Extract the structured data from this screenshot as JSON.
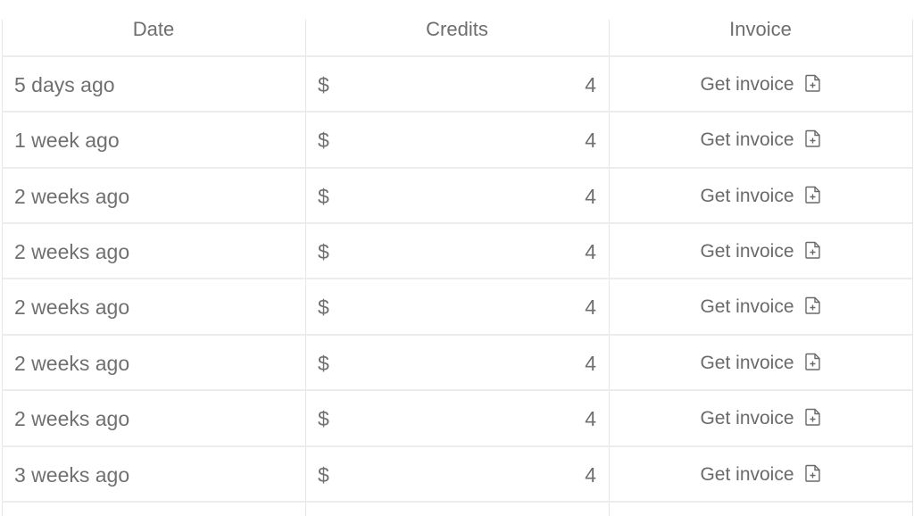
{
  "headers": {
    "date": "Date",
    "credits": "Credits",
    "invoice": "Invoice"
  },
  "rows": [
    {
      "date": "5 days ago",
      "currency": "$",
      "amount": "4",
      "invoice": "Get invoice"
    },
    {
      "date": "1 week ago",
      "currency": "$",
      "amount": "4",
      "invoice": "Get invoice"
    },
    {
      "date": "2 weeks ago",
      "currency": "$",
      "amount": "4",
      "invoice": "Get invoice"
    },
    {
      "date": "2 weeks ago",
      "currency": "$",
      "amount": "4",
      "invoice": "Get invoice"
    },
    {
      "date": "2 weeks ago",
      "currency": "$",
      "amount": "4",
      "invoice": "Get invoice"
    },
    {
      "date": "2 weeks ago",
      "currency": "$",
      "amount": "4",
      "invoice": "Get invoice"
    },
    {
      "date": "2 weeks ago",
      "currency": "$",
      "amount": "4",
      "invoice": "Get invoice"
    },
    {
      "date": "3 weeks ago",
      "currency": "$",
      "amount": "4",
      "invoice": "Get invoice"
    }
  ],
  "icons": {
    "invoice": "file-plus-icon"
  }
}
